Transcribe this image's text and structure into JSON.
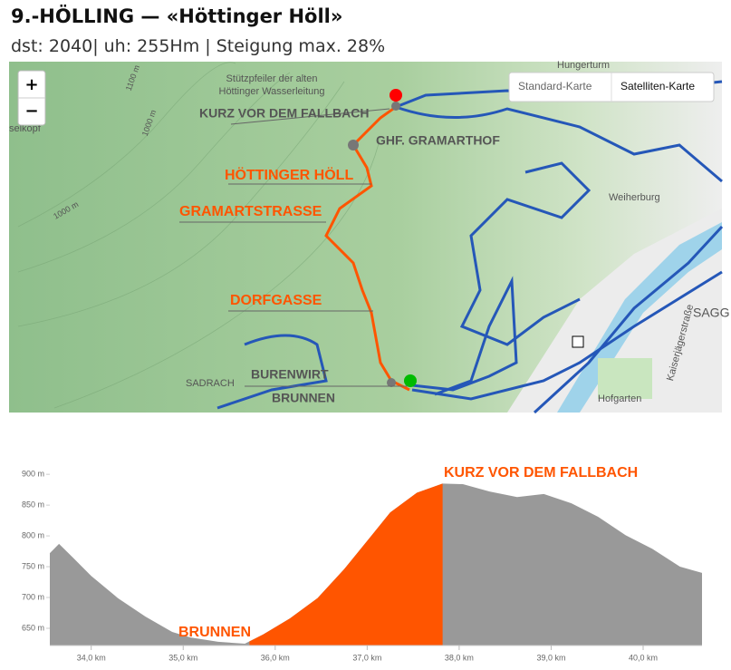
{
  "header": {
    "title": "9.-HÖLLING — «Höttinger Höll»",
    "subtitle": "dst: 2040| uh: 255Hm | Steigung max. 28%"
  },
  "map": {
    "controls": {
      "zoom_in": "+",
      "zoom_out": "−",
      "layers": [
        "Standard-Karte",
        "Satelliten-Karte"
      ]
    },
    "places": [
      "Stützpfeiler der alten",
      "Höttinger Wasserleitung",
      "Hungerturm",
      "Weiherburg",
      "SADRACH",
      "SAGG",
      "Hofgarten",
      "Kaiserjägerstraße",
      "1000 m",
      "1000 m",
      "1100 m",
      "selkopf"
    ],
    "route_labels": [
      "KURZ VOR DEM FALLBACH",
      "GHF. GRAMARTHOF",
      "HÖTTINGER HÖLL",
      "GRAMARTSTRASSE",
      "DORFGASSE",
      "BURENWIRT",
      "BRUNNEN"
    ]
  },
  "chart_data": {
    "type": "area",
    "x": [
      33.55,
      33.65,
      33.8,
      34.0,
      34.29,
      34.59,
      34.88,
      35.08,
      35.38,
      35.67,
      35.87,
      36.16,
      36.46,
      36.75,
      37.05,
      37.25,
      37.54,
      37.82,
      38.04,
      38.33,
      38.63,
      38.92,
      39.22,
      39.51,
      39.81,
      40.1,
      40.4,
      40.64
    ],
    "series": [
      {
        "color": "#999999",
        "values": [
          772,
          787,
          765,
          735,
          699,
          669,
          644,
          635,
          628,
          625,
          640,
          666,
          699,
          746,
          801,
          838,
          870,
          885,
          884,
          872,
          863,
          868,
          853,
          831,
          801,
          779,
          750,
          740
        ]
      }
    ],
    "highlight": {
      "xrange": [
        35.72,
        37.82
      ],
      "color": "#ff5500"
    },
    "annotations": [
      "KURZ VOR DEM FALLBACH",
      "BRUNNEN"
    ],
    "xlim": [
      33.55,
      40.64
    ],
    "ylim": [
      622,
      912
    ],
    "xticks": [
      {
        "value": 34,
        "label": "34,0 km"
      },
      {
        "value": 35,
        "label": "35,0 km"
      },
      {
        "value": 36,
        "label": "36,0 km"
      },
      {
        "value": 37,
        "label": "37,0 km"
      },
      {
        "value": 38,
        "label": "38,0 km"
      },
      {
        "value": 39,
        "label": "39,0 km"
      },
      {
        "value": 40,
        "label": "40,0 km"
      }
    ],
    "yticks": [
      {
        "value": 650,
        "label": "650 m"
      },
      {
        "value": 700,
        "label": "700 m"
      },
      {
        "value": 750,
        "label": "750 m"
      },
      {
        "value": 800,
        "label": "800 m"
      },
      {
        "value": 850,
        "label": "850 m"
      },
      {
        "value": 900,
        "label": "900 m"
      }
    ]
  }
}
